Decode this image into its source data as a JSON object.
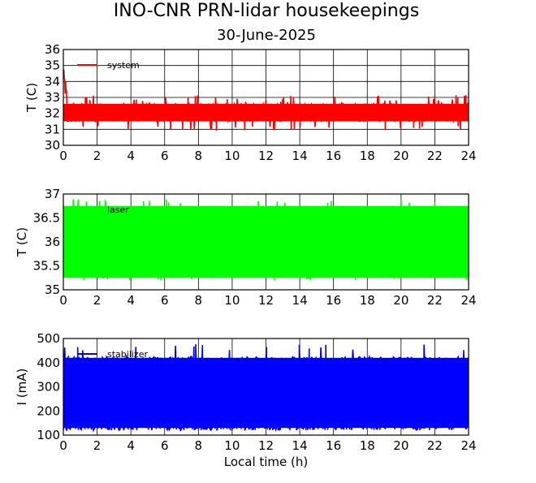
{
  "title": "INO-CNR PRN-lidar housekeepings",
  "subtitle": "30-June-2025",
  "chart_data": [
    {
      "type": "line",
      "ylabel": "T (C)",
      "xlabel": "",
      "xlim": [
        0,
        24
      ],
      "ylim": [
        30,
        36
      ],
      "xticks": [
        0,
        2,
        4,
        6,
        8,
        10,
        12,
        14,
        16,
        18,
        20,
        22,
        24
      ],
      "yticks": [
        30,
        31,
        32,
        33,
        34,
        35,
        36
      ],
      "grid": true,
      "legend_position": "top-left",
      "series": [
        {
          "name": "system",
          "color": "#ff0000",
          "baseline_low": 31.5,
          "baseline_high": 32.6,
          "min": 30.9,
          "max": 35.4
        }
      ]
    },
    {
      "type": "line",
      "ylabel": "T (C)",
      "xlabel": "",
      "xlim": [
        0,
        24
      ],
      "ylim": [
        35,
        37
      ],
      "xticks": [
        0,
        2,
        4,
        6,
        8,
        10,
        12,
        14,
        16,
        18,
        20,
        22,
        24
      ],
      "yticks": [
        35,
        35.5,
        36,
        36.5,
        37
      ],
      "grid": true,
      "legend_position": "top-left",
      "series": [
        {
          "name": "laser",
          "color": "#00ff00",
          "baseline_low": 35.25,
          "baseline_high": 36.75,
          "min": 35.2,
          "max": 36.9
        }
      ]
    },
    {
      "type": "line",
      "ylabel": "I (mA)",
      "xlabel": "Local time (h)",
      "xlim": [
        0,
        24
      ],
      "ylim": [
        100,
        500
      ],
      "xticks": [
        0,
        2,
        4,
        6,
        8,
        10,
        12,
        14,
        16,
        18,
        20,
        22,
        24
      ],
      "yticks": [
        100,
        200,
        300,
        400,
        500
      ],
      "grid": true,
      "legend_position": "top-left",
      "series": [
        {
          "name": "stabilizer",
          "color": "#0000ff",
          "baseline_low": 130,
          "baseline_high": 420,
          "min": 115,
          "max": 480
        }
      ]
    }
  ]
}
